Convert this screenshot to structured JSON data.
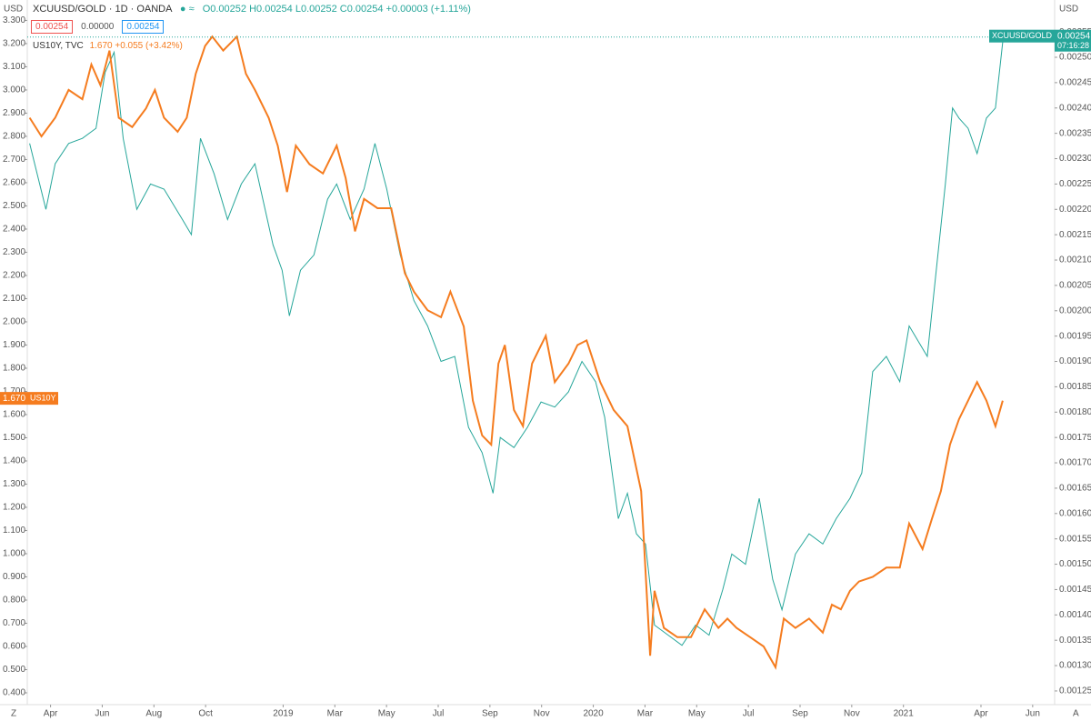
{
  "chart_data": {
    "type": "line",
    "header": {
      "symbol": "XCUUSD/GOLD",
      "interval": "1D",
      "exchange": "OANDA",
      "ohlc": "O0.00252 H0.00254 L0.00252 C0.00254 +0.00003 (+1.11%)",
      "boxes": [
        "0.00254",
        "0.00000",
        "0.00254"
      ],
      "overlay": "US10Y, TVC",
      "overlay_quote": "1.670 +0.055 (+3.42%)"
    },
    "currency_left": "USD",
    "currency_right": "USD",
    "corner_left": "Z",
    "corner_right": "A",
    "xlim": [
      2.1,
      41.85
    ],
    "xticks": [
      {
        "value": 3,
        "label": "Apr"
      },
      {
        "value": 5,
        "label": "Jun"
      },
      {
        "value": 7,
        "label": "Aug"
      },
      {
        "value": 9,
        "label": "Oct"
      },
      {
        "value": 12,
        "label": "2019"
      },
      {
        "value": 14,
        "label": "Mar"
      },
      {
        "value": 16,
        "label": "May"
      },
      {
        "value": 18,
        "label": "Jul"
      },
      {
        "value": 20,
        "label": "Sep"
      },
      {
        "value": 22,
        "label": "Nov"
      },
      {
        "value": 24,
        "label": "2020"
      },
      {
        "value": 26,
        "label": "Mar"
      },
      {
        "value": 28,
        "label": "May"
      },
      {
        "value": 30,
        "label": "Jul"
      },
      {
        "value": 32,
        "label": "Sep"
      },
      {
        "value": 34,
        "label": "Nov"
      },
      {
        "value": 36,
        "label": "2021"
      },
      {
        "value": 39,
        "label": "Apr"
      },
      {
        "value": 41,
        "label": "Jun"
      }
    ],
    "ylim": [
      0.349,
      3.388
    ],
    "yticks": [
      {
        "value": 0.4,
        "label": "0.400"
      },
      {
        "value": 0.5,
        "label": "0.500"
      },
      {
        "value": 0.6,
        "label": "0.600"
      },
      {
        "value": 0.7,
        "label": "0.700"
      },
      {
        "value": 0.8,
        "label": "0.800"
      },
      {
        "value": 0.9,
        "label": "0.900"
      },
      {
        "value": 1.0,
        "label": "1.000"
      },
      {
        "value": 1.1,
        "label": "1.100"
      },
      {
        "value": 1.2,
        "label": "1.200"
      },
      {
        "value": 1.3,
        "label": "1.300"
      },
      {
        "value": 1.4,
        "label": "1.400"
      },
      {
        "value": 1.5,
        "label": "1.500"
      },
      {
        "value": 1.6,
        "label": "1.600"
      },
      {
        "value": 1.7,
        "label": "1.700"
      },
      {
        "value": 1.8,
        "label": "1.800"
      },
      {
        "value": 1.9,
        "label": "1.900"
      },
      {
        "value": 2.0,
        "label": "2.000"
      },
      {
        "value": 2.1,
        "label": "2.100"
      },
      {
        "value": 2.2,
        "label": "2.200"
      },
      {
        "value": 2.3,
        "label": "2.300"
      },
      {
        "value": 2.4,
        "label": "2.400"
      },
      {
        "value": 2.5,
        "label": "2.500"
      },
      {
        "value": 2.6,
        "label": "2.600"
      },
      {
        "value": 2.7,
        "label": "2.700"
      },
      {
        "value": 2.8,
        "label": "2.800"
      },
      {
        "value": 2.9,
        "label": "2.900"
      },
      {
        "value": 3.0,
        "label": "3.000"
      },
      {
        "value": 3.1,
        "label": "3.100"
      },
      {
        "value": 3.2,
        "label": "3.200"
      },
      {
        "value": 3.3,
        "label": "3.300"
      }
    ],
    "y2lim": [
      0.001223,
      0.002613
    ],
    "y2ticks": [
      {
        "value": 0.00125,
        "label": "0.00125"
      },
      {
        "value": 0.0013,
        "label": "0.00130"
      },
      {
        "value": 0.00135,
        "label": "0.00135"
      },
      {
        "value": 0.0014,
        "label": "0.00140"
      },
      {
        "value": 0.00145,
        "label": "0.00145"
      },
      {
        "value": 0.0015,
        "label": "0.00150"
      },
      {
        "value": 0.00155,
        "label": "0.00155"
      },
      {
        "value": 0.0016,
        "label": "0.00160"
      },
      {
        "value": 0.00165,
        "label": "0.00165"
      },
      {
        "value": 0.0017,
        "label": "0.00170"
      },
      {
        "value": 0.00175,
        "label": "0.00175"
      },
      {
        "value": 0.0018,
        "label": "0.00180"
      },
      {
        "value": 0.00185,
        "label": "0.00185"
      },
      {
        "value": 0.0019,
        "label": "0.00190"
      },
      {
        "value": 0.00195,
        "label": "0.00195"
      },
      {
        "value": 0.002,
        "label": "0.00200"
      },
      {
        "value": 0.00205,
        "label": "0.00205"
      },
      {
        "value": 0.0021,
        "label": "0.00210"
      },
      {
        "value": 0.00215,
        "label": "0.00215"
      },
      {
        "value": 0.0022,
        "label": "0.00220"
      },
      {
        "value": 0.00225,
        "label": "0.00225"
      },
      {
        "value": 0.0023,
        "label": "0.00230"
      },
      {
        "value": 0.00235,
        "label": "0.00235"
      },
      {
        "value": 0.0024,
        "label": "0.00240"
      },
      {
        "value": 0.00245,
        "label": "0.00245"
      },
      {
        "value": 0.0025,
        "label": "0.00250"
      },
      {
        "value": 0.00255,
        "label": "0.00255"
      }
    ],
    "series": [
      {
        "name": "XCUUSD/GOLD",
        "color": "#26a69a",
        "axis": "y2",
        "last_value": 0.00254,
        "last_time": "07:16:28",
        "x": [
          2.19,
          2.82,
          3.18,
          3.7,
          4.23,
          4.76,
          5.11,
          5.46,
          5.81,
          6.34,
          6.87,
          7.39,
          8.1,
          8.45,
          8.8,
          9.33,
          9.85,
          10.38,
          10.91,
          11.61,
          11.96,
          12.24,
          12.67,
          13.19,
          13.72,
          14.07,
          14.6,
          15.13,
          15.55,
          16.01,
          16.53,
          17.06,
          17.59,
          18.11,
          18.64,
          19.17,
          19.7,
          20.12,
          20.4,
          20.93,
          21.45,
          21.98,
          22.51,
          23.04,
          23.56,
          24.09,
          24.44,
          24.97,
          25.32,
          25.67,
          26.02,
          26.37,
          26.9,
          27.43,
          27.96,
          28.48,
          29.01,
          29.36,
          29.89,
          30.42,
          30.94,
          31.3,
          31.82,
          32.35,
          32.88,
          33.4,
          33.93,
          34.39,
          34.81,
          35.34,
          35.86,
          36.22,
          36.92,
          37.27,
          37.62,
          37.9,
          38.15,
          38.5,
          38.85,
          39.21,
          39.56,
          39.84
        ],
        "values": [
          0.00233,
          0.0022,
          0.00229,
          0.00233,
          0.00234,
          0.00236,
          0.00247,
          0.00251,
          0.00234,
          0.0022,
          0.00225,
          0.00224,
          0.00218,
          0.00215,
          0.00234,
          0.00227,
          0.00218,
          0.00225,
          0.00229,
          0.00213,
          0.00208,
          0.00199,
          0.00208,
          0.00211,
          0.00222,
          0.00225,
          0.00218,
          0.00224,
          0.00233,
          0.00224,
          0.00211,
          0.00202,
          0.00197,
          0.0019,
          0.00191,
          0.00177,
          0.00172,
          0.00164,
          0.00175,
          0.00173,
          0.00177,
          0.00182,
          0.00181,
          0.00184,
          0.0019,
          0.00186,
          0.00179,
          0.00159,
          0.00164,
          0.00156,
          0.00154,
          0.00138,
          0.00136,
          0.00134,
          0.00138,
          0.00136,
          0.00145,
          0.00152,
          0.0015,
          0.00163,
          0.00147,
          0.00141,
          0.00152,
          0.00156,
          0.00154,
          0.00159,
          0.00163,
          0.00168,
          0.00188,
          0.00191,
          0.00186,
          0.00197,
          0.00191,
          0.00208,
          0.00225,
          0.0024,
          0.00238,
          0.00236,
          0.00231,
          0.00238,
          0.0024,
          0.00253
        ]
      },
      {
        "name": "US10Y",
        "color": "#f57c1f",
        "axis": "y",
        "last_value": {
          "value": 1.67,
          "label": "1.670"
        },
        "x": [
          2.19,
          2.65,
          3.18,
          3.7,
          4.23,
          4.58,
          4.93,
          5.28,
          5.64,
          6.16,
          6.69,
          7.04,
          7.39,
          7.92,
          8.27,
          8.62,
          8.98,
          9.26,
          9.68,
          10.21,
          10.56,
          10.91,
          11.44,
          11.79,
          12.15,
          12.49,
          13.02,
          13.54,
          14.07,
          14.42,
          14.78,
          15.13,
          15.65,
          16.18,
          16.71,
          17.06,
          17.59,
          18.11,
          18.47,
          18.99,
          19.34,
          19.7,
          20.05,
          20.33,
          20.58,
          20.93,
          21.28,
          21.63,
          22.16,
          22.51,
          23.04,
          23.39,
          23.74,
          24.27,
          24.79,
          25.32,
          25.85,
          26.2,
          26.37,
          26.73,
          27.25,
          27.78,
          28.31,
          28.84,
          29.19,
          29.54,
          30.07,
          30.59,
          31.05,
          31.37,
          31.82,
          32.35,
          32.88,
          33.23,
          33.58,
          33.93,
          34.28,
          34.81,
          35.34,
          35.86,
          36.22,
          36.74,
          37.1,
          37.45,
          37.8,
          38.15,
          38.5,
          38.85,
          39.21,
          39.56,
          39.84
        ],
        "values": [
          2.88,
          2.8,
          2.88,
          3.0,
          2.96,
          3.11,
          3.02,
          3.17,
          2.88,
          2.84,
          2.92,
          3.0,
          2.88,
          2.82,
          2.88,
          3.07,
          3.19,
          3.23,
          3.17,
          3.23,
          3.07,
          3.0,
          2.88,
          2.76,
          2.56,
          2.76,
          2.68,
          2.64,
          2.76,
          2.62,
          2.39,
          2.53,
          2.49,
          2.49,
          2.21,
          2.13,
          2.05,
          2.02,
          2.13,
          1.98,
          1.66,
          1.51,
          1.47,
          1.82,
          1.9,
          1.62,
          1.55,
          1.82,
          1.94,
          1.74,
          1.82,
          1.9,
          1.92,
          1.74,
          1.62,
          1.55,
          1.27,
          0.56,
          0.84,
          0.68,
          0.64,
          0.64,
          0.76,
          0.68,
          0.72,
          0.68,
          0.64,
          0.6,
          0.51,
          0.72,
          0.68,
          0.72,
          0.66,
          0.78,
          0.76,
          0.84,
          0.88,
          0.9,
          0.94,
          0.94,
          1.13,
          1.02,
          1.15,
          1.27,
          1.47,
          1.58,
          1.66,
          1.74,
          1.66,
          1.55,
          1.66
        ]
      }
    ]
  }
}
